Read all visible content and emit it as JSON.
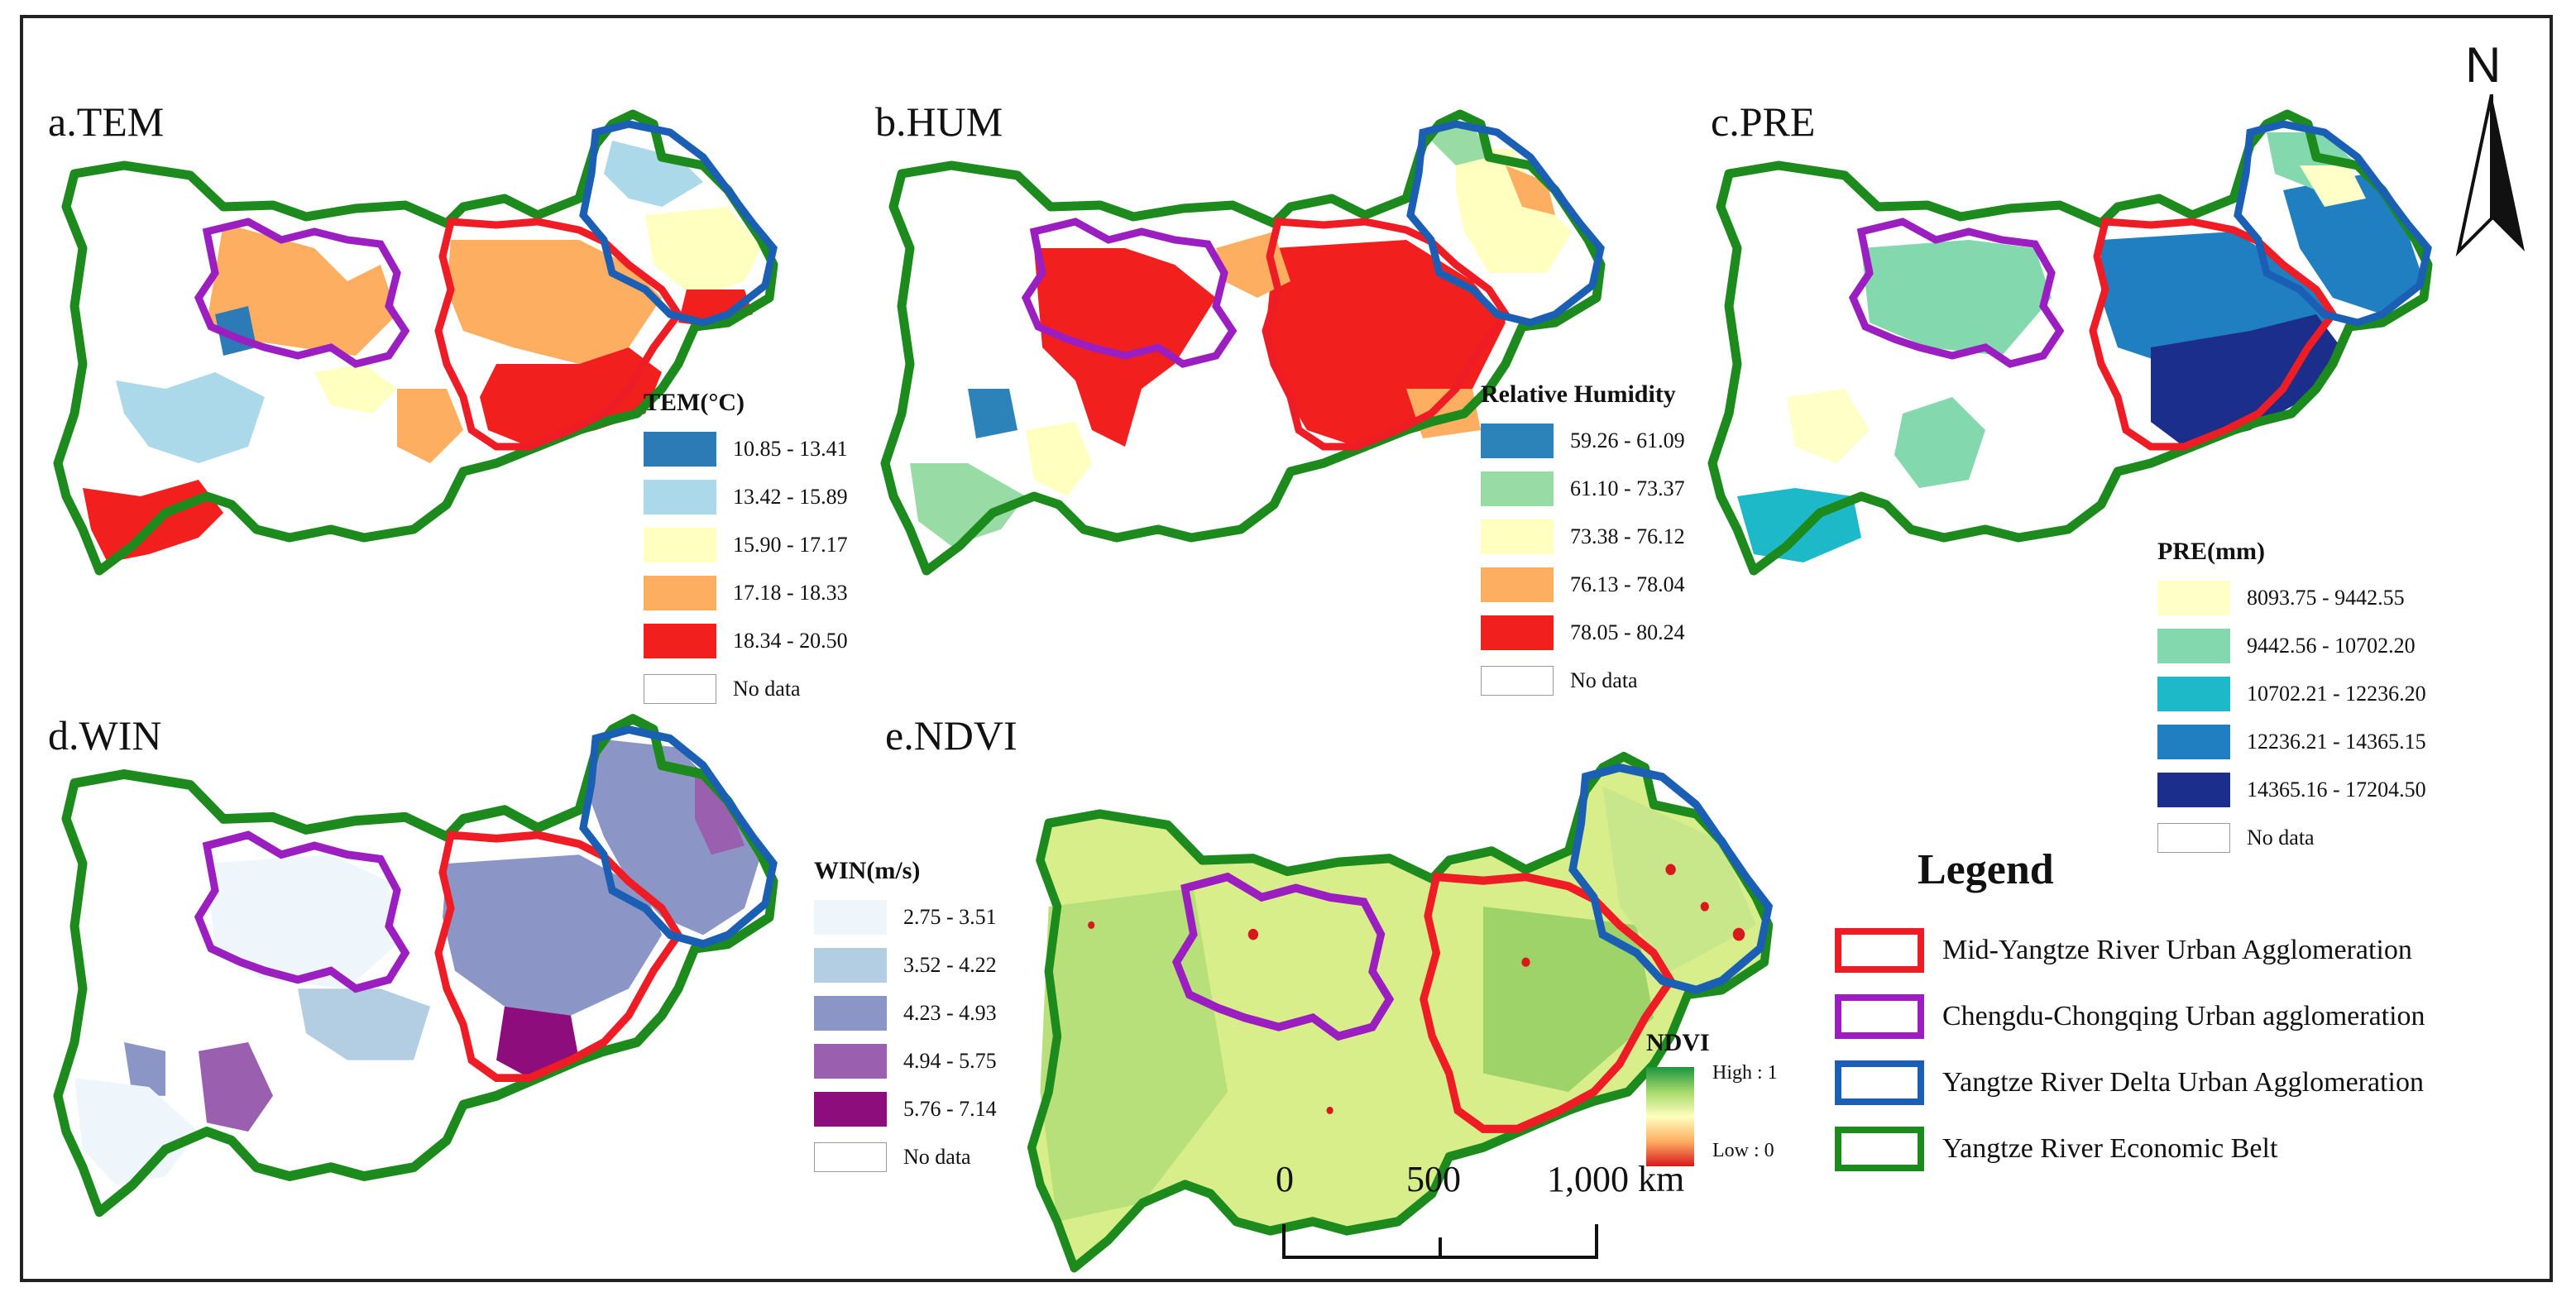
{
  "panels": {
    "tem": {
      "title": "a.TEM",
      "legend_title": "TEM(°C)",
      "classes": [
        {
          "label": "10.85 - 13.41",
          "color": "#2c7bb6"
        },
        {
          "label": "13.42 - 15.89",
          "color": "#abd9e9"
        },
        {
          "label": "15.90 - 17.17",
          "color": "#ffffbf"
        },
        {
          "label": "17.18 - 18.33",
          "color": "#fdae61"
        },
        {
          "label": "18.34 - 20.50",
          "color": "#f21f1f"
        }
      ],
      "no_data": "No data"
    },
    "hum": {
      "title": "b.HUM",
      "legend_title": "Relative Humidity",
      "classes": [
        {
          "label": "59.26 - 61.09",
          "color": "#2b83ba"
        },
        {
          "label": "61.10 - 73.37",
          "color": "#99dba5"
        },
        {
          "label": "73.38 - 76.12",
          "color": "#ffffbf"
        },
        {
          "label": "76.13 - 78.04",
          "color": "#fdae61"
        },
        {
          "label": "78.05 - 80.24",
          "color": "#f21f1f"
        }
      ],
      "no_data": "No data"
    },
    "pre": {
      "title": "c.PRE",
      "legend_title": "PRE(mm)",
      "classes": [
        {
          "label": "8093.75 - 9442.55",
          "color": "#ffffc8"
        },
        {
          "label": "9442.56 - 10702.20",
          "color": "#84d8ad"
        },
        {
          "label": "10702.21 - 12236.20",
          "color": "#1eb9c8"
        },
        {
          "label": "12236.21 - 14365.15",
          "color": "#1f7fc0"
        },
        {
          "label": "14365.16 - 17204.50",
          "color": "#1b2e8c"
        }
      ],
      "no_data": "No data"
    },
    "win": {
      "title": "d.WIN",
      "legend_title": "WIN(m/s)",
      "classes": [
        {
          "label": "2.75 - 3.51",
          "color": "#eef5fb"
        },
        {
          "label": "3.52 - 4.22",
          "color": "#b3cde3"
        },
        {
          "label": "4.23 - 4.93",
          "color": "#8c96c6"
        },
        {
          "label": "4.94 - 5.75",
          "color": "#9a5fae"
        },
        {
          "label": "5.76 - 7.14",
          "color": "#8e0d7c"
        }
      ],
      "no_data": "No data"
    },
    "ndvi": {
      "title": "e.NDVI",
      "legend_title": "NDVI",
      "high": "High : 1",
      "low": "Low : 0"
    }
  },
  "legend": {
    "title": "Legend",
    "items": [
      {
        "label": "Mid-Yangtze River Urban Agglomeration",
        "color": "#ee1c24"
      },
      {
        "label": "Chengdu-Chongqing Urban agglomeration",
        "color": "#9b1fc0"
      },
      {
        "label": "Yangtze River Delta Urban Agglomeration",
        "color": "#1b5fb5"
      },
      {
        "label": "Yangtze River Economic Belt",
        "color": "#1c8a1c"
      }
    ]
  },
  "north_arrow": "N",
  "scale_bar": {
    "labels": [
      "0",
      "500",
      "1,000 km"
    ]
  }
}
